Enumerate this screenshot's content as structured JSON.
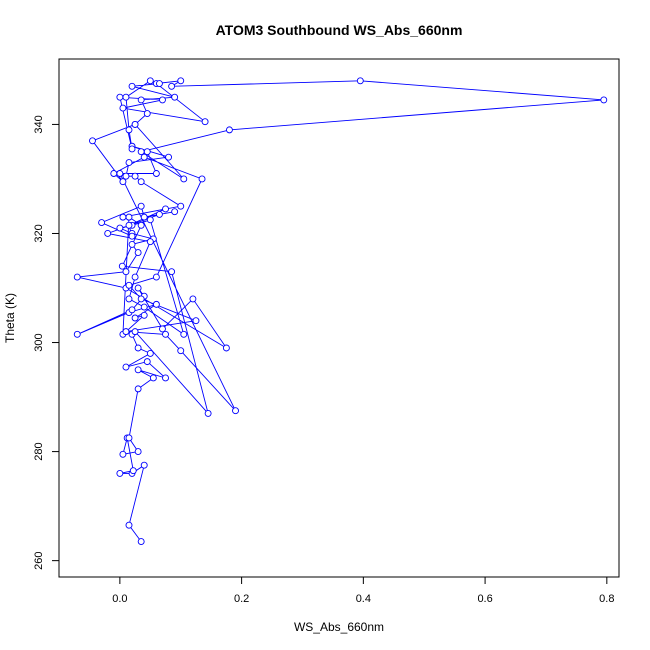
{
  "chart_data": {
    "type": "line",
    "title": "ATOM3 Southbound WS_Abs_660nm",
    "xlabel": "WS_Abs_660nm",
    "ylabel": "Theta (K)",
    "xlim": [
      -0.1,
      0.82
    ],
    "ylim": [
      257,
      352
    ],
    "xticks": [
      0.0,
      0.2,
      0.4,
      0.6,
      0.8
    ],
    "xtick_labels": [
      "0.0",
      "0.2",
      "0.4",
      "0.6",
      "0.8"
    ],
    "yticks": [
      260,
      280,
      300,
      320,
      340
    ],
    "yticks_labels": [
      "260",
      "280",
      "300",
      "320",
      "340"
    ],
    "grid": false,
    "line_color": "#0000ff",
    "marker": "open-circle",
    "series": [
      {
        "x": [
          0.035,
          0.015,
          0.04,
          0.02,
          0.0,
          0.022,
          0.012,
          0.005,
          0.03,
          0.015,
          0.03,
          0.055,
          0.03,
          0.075,
          0.045,
          0.01,
          0.05,
          0.03,
          0.02,
          0.025,
          0.145,
          0.085,
          0.004,
          0.035,
          0.015,
          0.005,
          0.04,
          0.025,
          0.06,
          0.015,
          -0.07,
          0.02,
          0.04,
          0.03,
          0.07,
          0.12,
          0.175,
          0.01,
          -0.07,
          0.01,
          0.03,
          0.02,
          0.055,
          0.02,
          0.0,
          0.02,
          0.05,
          0.105,
          0.04,
          0.015,
          0.025,
          0.05,
          -0.02,
          0.065,
          0.09,
          0.04,
          0.035,
          -0.03,
          0.02,
          0.015,
          0.075,
          0.005,
          0.1,
          0.035,
          0.025,
          0.01,
          0.015,
          0.08,
          0.02,
          0.045,
          0.06,
          0.0,
          0.19,
          0.1,
          0.075,
          0.01,
          0.125,
          0.035,
          0.015,
          0.06,
          0.135,
          0.04,
          -0.01,
          0.005,
          -0.045,
          0.025,
          0.105,
          0.035,
          0.18,
          0.795,
          0.395,
          0.085,
          0.1,
          0.06,
          0.14,
          0.005,
          0.07,
          0.0,
          0.02,
          0.015,
          0.01,
          0.05,
          0.065,
          0.02,
          0.09,
          0.035,
          0.045,
          0.025
        ],
        "y": [
          263.5,
          266.5,
          277.5,
          276,
          276,
          276.5,
          282.5,
          279.5,
          280,
          282.5,
          291.5,
          293.5,
          295,
          293.5,
          296.5,
          295.5,
          298,
          299,
          301.5,
          302,
          287,
          313,
          314,
          321.5,
          323,
          301.5,
          305,
          304.5,
          307,
          305.5,
          301.5,
          306,
          308.5,
          310,
          302.5,
          308,
          299,
          310,
          312,
          313,
          316.5,
          318,
          319,
          320,
          321,
          321.5,
          322.5,
          301.5,
          306.5,
          308,
          312,
          318.5,
          320,
          323.5,
          324,
          323,
          325,
          322,
          319.5,
          321.5,
          324.5,
          323,
          325,
          329.5,
          330.5,
          330.5,
          333,
          334,
          336,
          335,
          331,
          331,
          287.5,
          298.5,
          301.5,
          302,
          304,
          308,
          310.5,
          312,
          330,
          334,
          331,
          329.5,
          337,
          340,
          330,
          335,
          339,
          344.5,
          348,
          347,
          348,
          347.5,
          340.5,
          343,
          344.5,
          345,
          335.5,
          339,
          345,
          348,
          347.5,
          347,
          345,
          344.5,
          342,
          340
        ]
      }
    ]
  }
}
